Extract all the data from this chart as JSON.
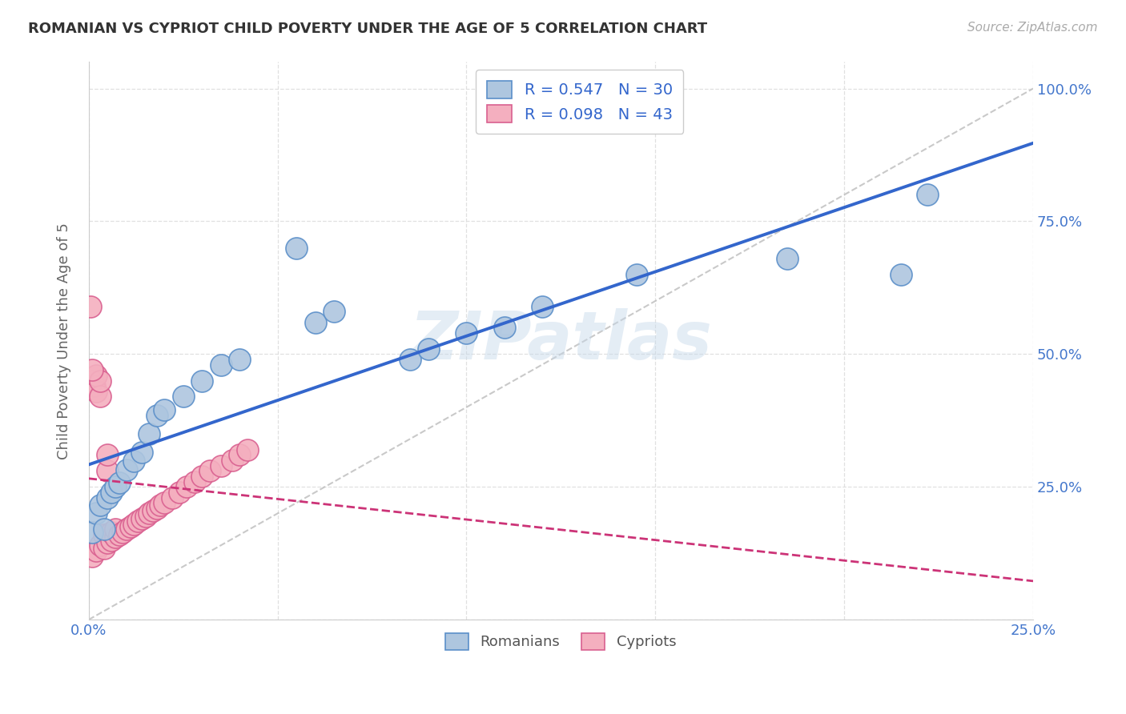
{
  "title": "ROMANIAN VS CYPRIOT CHILD POVERTY UNDER THE AGE OF 5 CORRELATION CHART",
  "source": "Source: ZipAtlas.com",
  "ylabel": "Child Poverty Under the Age of 5",
  "watermark": "ZIPatlas",
  "xlim": [
    0.0,
    0.25
  ],
  "ylim": [
    0.0,
    1.05
  ],
  "romanian_color": "#aec6df",
  "cypriot_color": "#f4afbf",
  "romanian_edge_color": "#5b8fc9",
  "cypriot_edge_color": "#d96090",
  "romanian_line_color": "#3366cc",
  "cypriot_line_color": "#cc3377",
  "ref_line_color": "#c0c0c0",
  "grid_color": "#e0e0e0",
  "tick_color": "#4477cc",
  "background_color": "#ffffff",
  "romanian_x": [
    0.001,
    0.002,
    0.003,
    0.004,
    0.005,
    0.006,
    0.007,
    0.008,
    0.01,
    0.012,
    0.014,
    0.016,
    0.018,
    0.02,
    0.025,
    0.03,
    0.035,
    0.04,
    0.055,
    0.06,
    0.065,
    0.085,
    0.09,
    0.1,
    0.11,
    0.12,
    0.145,
    0.185,
    0.215,
    0.222
  ],
  "romanian_y": [
    0.165,
    0.2,
    0.215,
    0.17,
    0.23,
    0.24,
    0.25,
    0.258,
    0.282,
    0.298,
    0.315,
    0.35,
    0.385,
    0.395,
    0.42,
    0.45,
    0.48,
    0.49,
    0.7,
    0.56,
    0.58,
    0.49,
    0.51,
    0.54,
    0.55,
    0.59,
    0.65,
    0.68,
    0.65,
    0.8
  ],
  "cypriot_x": [
    0.0005,
    0.001,
    0.001,
    0.0015,
    0.002,
    0.002,
    0.002,
    0.003,
    0.003,
    0.003,
    0.004,
    0.004,
    0.005,
    0.005,
    0.005,
    0.006,
    0.006,
    0.007,
    0.007,
    0.008,
    0.009,
    0.01,
    0.011,
    0.012,
    0.013,
    0.014,
    0.015,
    0.016,
    0.017,
    0.018,
    0.019,
    0.02,
    0.022,
    0.024,
    0.026,
    0.028,
    0.03,
    0.032,
    0.035,
    0.038,
    0.04,
    0.042,
    0.001
  ],
  "cypriot_y": [
    0.59,
    0.12,
    0.45,
    0.44,
    0.13,
    0.43,
    0.46,
    0.14,
    0.42,
    0.45,
    0.135,
    0.16,
    0.145,
    0.28,
    0.31,
    0.15,
    0.165,
    0.155,
    0.17,
    0.16,
    0.165,
    0.17,
    0.175,
    0.18,
    0.185,
    0.19,
    0.195,
    0.2,
    0.205,
    0.21,
    0.215,
    0.22,
    0.23,
    0.24,
    0.25,
    0.26,
    0.27,
    0.28,
    0.29,
    0.3,
    0.31,
    0.32,
    0.47
  ]
}
